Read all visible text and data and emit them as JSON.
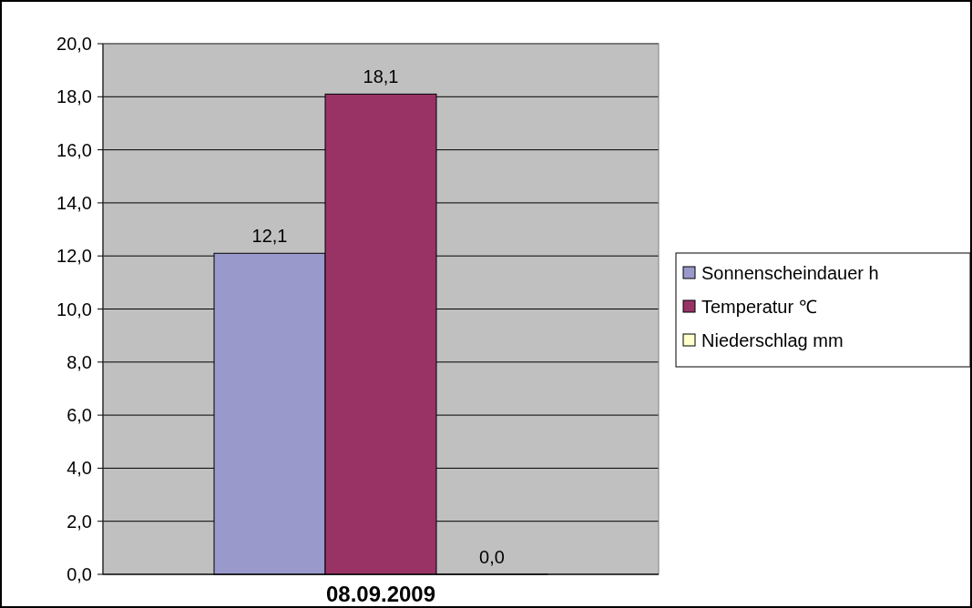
{
  "chart_data": {
    "type": "bar",
    "categories": [
      "08.09.2009"
    ],
    "series": [
      {
        "name": "Sonnenscheindauer h",
        "color": "#9999cc",
        "values": [
          12.1
        ],
        "value_labels": [
          "12,1"
        ]
      },
      {
        "name": "Temperatur ℃",
        "color": "#993366",
        "values": [
          18.1
        ],
        "value_labels": [
          "18,1"
        ]
      },
      {
        "name": "Niederschlag mm",
        "color": "#ffffcc",
        "values": [
          0.0
        ],
        "value_labels": [
          "0,0"
        ]
      }
    ],
    "ylim": [
      0,
      20
    ],
    "yticks": [
      {
        "value": 0,
        "label": "0,0"
      },
      {
        "value": 2,
        "label": "2,0"
      },
      {
        "value": 4,
        "label": "4,0"
      },
      {
        "value": 6,
        "label": "6,0"
      },
      {
        "value": 8,
        "label": "8,0"
      },
      {
        "value": 10,
        "label": "10,0"
      },
      {
        "value": 12,
        "label": "12,0"
      },
      {
        "value": 14,
        "label": "14,0"
      },
      {
        "value": 16,
        "label": "16,0"
      },
      {
        "value": 18,
        "label": "18,0"
      },
      {
        "value": 20,
        "label": "20,0"
      }
    ],
    "grid": "y",
    "legend": "right"
  }
}
